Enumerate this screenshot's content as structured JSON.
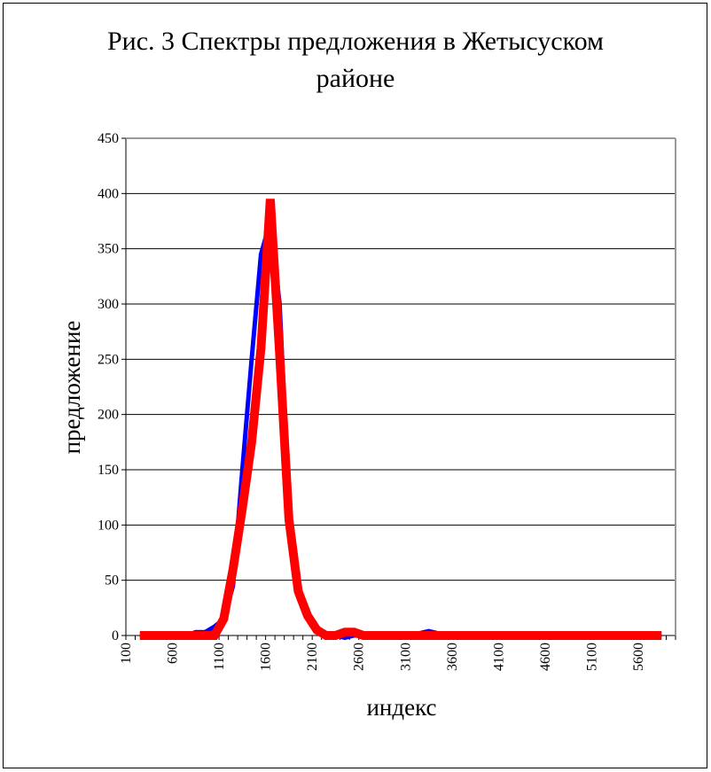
{
  "chart_data": {
    "type": "line",
    "title": "Рис. 3 Спектры предложения в Жетысуском районе",
    "xlabel": "индекс",
    "ylabel": "предложение",
    "ylim": [
      0,
      450
    ],
    "yticks": [
      0,
      50,
      100,
      150,
      200,
      250,
      300,
      350,
      400,
      450
    ],
    "xlim": [
      100,
      6000
    ],
    "xticks": [
      100,
      600,
      1100,
      1600,
      2100,
      2600,
      3100,
      3600,
      4100,
      4600,
      5100,
      5600
    ],
    "grid": "horizontal",
    "legend": "none",
    "x": [
      250,
      350,
      450,
      550,
      650,
      750,
      850,
      950,
      1050,
      1150,
      1250,
      1350,
      1450,
      1550,
      1650,
      1750,
      1850,
      1950,
      2050,
      2150,
      2250,
      2350,
      2450,
      2550,
      2650,
      2750,
      2850,
      2950,
      3050,
      3150,
      3250,
      3350,
      3450,
      3550,
      3650,
      3750,
      3850,
      3950,
      4050,
      4150,
      4250,
      4350,
      4450,
      4550,
      4650,
      4750,
      4850,
      4950,
      5050,
      5150,
      5250,
      5350,
      5450,
      5550,
      5650,
      5750,
      5850
    ],
    "series": [
      {
        "color": "#0000ff",
        "values": [
          0,
          0,
          0,
          0,
          0,
          0,
          3,
          3,
          8,
          15,
          45,
          150,
          250,
          345,
          375,
          300,
          120,
          45,
          20,
          5,
          0,
          0,
          -2,
          0,
          0,
          0,
          0,
          0,
          0,
          0,
          2,
          4,
          2,
          0,
          0,
          0,
          0,
          0,
          0,
          0,
          0,
          0,
          0,
          0,
          0,
          0,
          0,
          0,
          0,
          0,
          0,
          0,
          0,
          0,
          0,
          0,
          0
        ]
      },
      {
        "color": "#ff0000",
        "values": [
          0,
          0,
          0,
          0,
          0,
          0,
          0,
          0,
          0,
          15,
          60,
          115,
          175,
          260,
          395,
          255,
          105,
          40,
          18,
          5,
          0,
          0,
          3,
          3,
          0,
          0,
          0,
          0,
          0,
          0,
          0,
          0,
          0,
          0,
          0,
          0,
          0,
          0,
          0,
          0,
          0,
          0,
          0,
          0,
          0,
          0,
          0,
          0,
          0,
          0,
          0,
          0,
          0,
          0,
          0,
          0,
          0
        ]
      }
    ]
  }
}
